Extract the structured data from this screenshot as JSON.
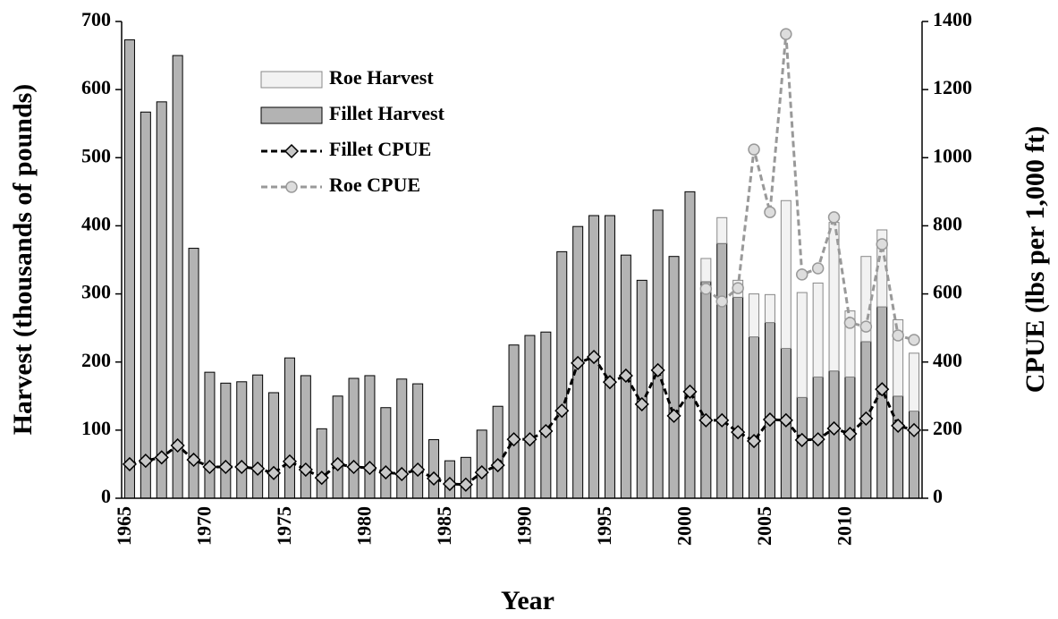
{
  "chart_data": {
    "type": "bar",
    "xlabel": "Year",
    "ylabel": "Harvest (thousands of pounds)",
    "y2label": "CPUE (lbs per 1,000 ft)",
    "categories": [
      "1965",
      null,
      null,
      null,
      null,
      "1970",
      null,
      null,
      null,
      null,
      "1975",
      null,
      null,
      null,
      null,
      "1980",
      null,
      null,
      null,
      null,
      "1985",
      null,
      null,
      null,
      null,
      "1990",
      null,
      null,
      null,
      null,
      "1995",
      null,
      null,
      null,
      null,
      "2000",
      null,
      null,
      null,
      null,
      "2005",
      null,
      null,
      null,
      null,
      "2010",
      null,
      null,
      null,
      null
    ],
    "ylim": [
      0,
      700
    ],
    "yticks": [
      0,
      100,
      200,
      300,
      400,
      500,
      600,
      700
    ],
    "y2lim": [
      0,
      1400
    ],
    "y2ticks": [
      0,
      200,
      400,
      600,
      800,
      1000,
      1200,
      1400
    ],
    "stacked": true,
    "series": [
      {
        "name": "Fillet Harvest",
        "type": "bar",
        "color": "#b3b3b3",
        "values": [
          673,
          567,
          582,
          650,
          367,
          185,
          169,
          171,
          181,
          155,
          206,
          180,
          102,
          150,
          176,
          180,
          133,
          175,
          168,
          86,
          55,
          60,
          100,
          135,
          225,
          239,
          244,
          362,
          399,
          415,
          415,
          357,
          320,
          423,
          355,
          450,
          318,
          374,
          295,
          237,
          258,
          220,
          148,
          178,
          187,
          178,
          230,
          281,
          150,
          128
        ]
      },
      {
        "name": "Roe Harvest",
        "type": "bar",
        "color": "#f2f2f2",
        "values": [
          null,
          null,
          null,
          null,
          null,
          null,
          null,
          null,
          null,
          null,
          null,
          null,
          null,
          null,
          null,
          null,
          null,
          null,
          null,
          null,
          null,
          null,
          null,
          null,
          null,
          null,
          null,
          null,
          null,
          null,
          null,
          null,
          null,
          null,
          null,
          null,
          34,
          38,
          25,
          63,
          41,
          217,
          154,
          138,
          218,
          97,
          125,
          113,
          112,
          85
        ]
      },
      {
        "name": "Fillet CPUE",
        "type": "line",
        "axis": "y2",
        "color": "#000000",
        "marker": "diamond",
        "marker_color": "#c8c8c8",
        "values": [
          100,
          110,
          120,
          155,
          113,
          92,
          92,
          92,
          87,
          74,
          108,
          84,
          60,
          100,
          92,
          89,
          76,
          71,
          84,
          58,
          42,
          40,
          76,
          97,
          173,
          173,
          197,
          257,
          397,
          415,
          341,
          360,
          276,
          376,
          242,
          313,
          229,
          229,
          194,
          168,
          231,
          229,
          171,
          173,
          205,
          189,
          234,
          320,
          213,
          200
        ]
      },
      {
        "name": "Roe CPUE",
        "type": "line",
        "axis": "y2",
        "color": "#999999",
        "marker": "circle",
        "marker_color": "#dddddd",
        "values": [
          null,
          null,
          null,
          null,
          null,
          null,
          null,
          null,
          null,
          null,
          null,
          null,
          null,
          null,
          null,
          null,
          null,
          null,
          null,
          null,
          null,
          null,
          null,
          null,
          null,
          null,
          null,
          null,
          null,
          null,
          null,
          null,
          null,
          null,
          null,
          null,
          615,
          578,
          617,
          1024,
          840,
          1363,
          657,
          675,
          825,
          515,
          504,
          746,
          478,
          465
        ]
      }
    ]
  }
}
